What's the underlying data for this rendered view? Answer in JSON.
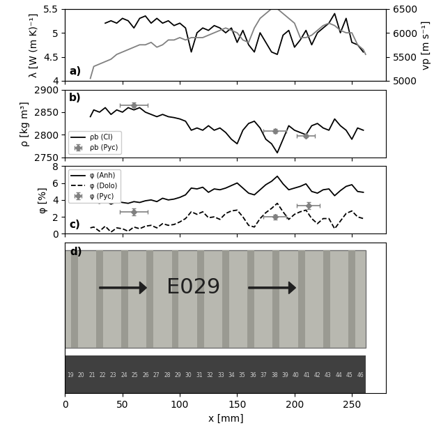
{
  "chart_data": [
    {
      "type": "line",
      "panel_label": "a)",
      "ylabel": "λ [W (m K)⁻¹]",
      "y2label": "vp [m s⁻¹]",
      "xlim": [
        0,
        280
      ],
      "xticks": [
        0,
        50,
        100,
        150,
        200,
        250
      ],
      "ylim": [
        4,
        5.5
      ],
      "yticks": [
        4,
        {
          "value": 4.5,
          "label": "4.5"
        },
        5,
        {
          "value": 5.5,
          "label": "5.5"
        }
      ],
      "y2lim": [
        5000,
        6500
      ],
      "y2ticks": [
        5000,
        5500,
        6000,
        6500
      ],
      "tick_labels": "y",
      "series": [
        {
          "name": "λ",
          "type": "line",
          "color": "#000000",
          "line_style": "solid",
          "x": [
            35,
            40,
            45,
            50,
            55,
            60,
            65,
            70,
            75,
            80,
            85,
            90,
            95,
            100,
            105,
            110,
            115,
            120,
            125,
            130,
            135,
            140,
            145,
            150,
            155,
            160,
            165,
            170,
            175,
            180,
            185,
            190,
            195,
            200,
            205,
            210,
            215,
            220,
            225,
            230,
            235,
            240,
            245,
            250,
            255,
            260
          ],
          "values": [
            5.2,
            5.25,
            5.2,
            5.3,
            5.25,
            5.1,
            5.3,
            5.35,
            5.2,
            5.3,
            5.2,
            5.25,
            5.15,
            5.2,
            5.1,
            4.6,
            5.0,
            5.1,
            5.05,
            5.15,
            5.1,
            5.0,
            5.1,
            4.8,
            5.05,
            4.75,
            4.6,
            5.0,
            4.8,
            4.6,
            4.55,
            4.95,
            5.05,
            4.7,
            4.85,
            5.05,
            4.75,
            5.0,
            5.1,
            5.2,
            5.4,
            5.0,
            5.3,
            4.8,
            4.75,
            4.6
          ]
        },
        {
          "name": "vp",
          "type": "line",
          "color": "#808080",
          "line_style": "solid",
          "axis": "y2",
          "x": [
            22,
            25,
            30,
            35,
            40,
            45,
            50,
            55,
            60,
            65,
            70,
            75,
            80,
            85,
            90,
            95,
            100,
            105,
            110,
            115,
            120,
            125,
            130,
            135,
            140,
            145,
            150,
            155,
            160,
            165,
            170,
            175,
            180,
            185,
            190,
            195,
            200,
            205,
            210,
            215,
            220,
            225,
            230,
            235,
            240,
            245,
            250,
            255,
            260,
            262
          ],
          "values": [
            5050,
            5300,
            5350,
            5400,
            5450,
            5550,
            5600,
            5650,
            5700,
            5750,
            5750,
            5800,
            5700,
            5750,
            5850,
            5850,
            5900,
            5850,
            5900,
            5900,
            5900,
            5950,
            6000,
            6050,
            6100,
            6050,
            6000,
            5850,
            5800,
            6100,
            6300,
            6400,
            6500,
            6500,
            6400,
            6300,
            6200,
            5900,
            5900,
            5950,
            6050,
            6150,
            6200,
            6150,
            6050,
            6000,
            6000,
            5750,
            5650,
            5550
          ]
        }
      ]
    },
    {
      "type": "line",
      "panel_label": "b)",
      "ylabel": "ρ [kg m³]",
      "xlim": [
        0,
        280
      ],
      "xticks": [
        0,
        50,
        100,
        150,
        200,
        250
      ],
      "ylim": [
        2750,
        2900
      ],
      "yticks": [
        2750,
        2800,
        2850,
        2900
      ],
      "tick_labels": "y",
      "legend": "lower left",
      "series": [
        {
          "name": "ρb (Cl)",
          "type": "line",
          "color": "#000000",
          "line_style": "solid",
          "x": [
            22,
            25,
            30,
            35,
            40,
            45,
            50,
            55,
            60,
            65,
            70,
            75,
            80,
            85,
            90,
            95,
            100,
            105,
            110,
            115,
            120,
            125,
            130,
            135,
            140,
            145,
            150,
            155,
            160,
            165,
            170,
            175,
            180,
            185,
            190,
            195,
            200,
            205,
            210,
            215,
            220,
            225,
            230,
            235,
            240,
            245,
            250,
            255,
            260
          ],
          "values": [
            2840,
            2855,
            2850,
            2860,
            2845,
            2855,
            2850,
            2860,
            2855,
            2860,
            2850,
            2845,
            2840,
            2845,
            2840,
            2838,
            2835,
            2830,
            2810,
            2815,
            2810,
            2820,
            2810,
            2815,
            2805,
            2790,
            2780,
            2810,
            2825,
            2830,
            2815,
            2790,
            2780,
            2760,
            2790,
            2820,
            2810,
            2805,
            2800,
            2820,
            2825,
            2815,
            2810,
            2835,
            2820,
            2810,
            2790,
            2815,
            2810
          ]
        },
        {
          "name": "ρb (Pyc)",
          "type": "scatter",
          "color": "#808080",
          "marker": "diamond",
          "x": [
            60,
            183,
            210
          ],
          "values": [
            2866,
            2808,
            2798
          ],
          "x_error": [
            12,
            10,
            8
          ],
          "y_error": [
            5,
            5,
            3
          ]
        }
      ]
    },
    {
      "type": "line",
      "panel_label": "c)",
      "ylabel": "φ [%]",
      "xlim": [
        0,
        280
      ],
      "xticks": [
        0,
        50,
        100,
        150,
        200,
        250
      ],
      "ylim": [
        0,
        8
      ],
      "yticks": [
        0,
        2,
        4,
        6,
        8
      ],
      "tick_labels": "y",
      "legend": "upper left",
      "series": [
        {
          "name": "φ (Anh)",
          "type": "line",
          "color": "#000000",
          "line_style": "solid",
          "x": [
            22,
            25,
            30,
            35,
            40,
            45,
            50,
            55,
            60,
            65,
            70,
            75,
            80,
            85,
            90,
            95,
            100,
            105,
            110,
            115,
            120,
            125,
            130,
            135,
            140,
            145,
            150,
            155,
            160,
            165,
            170,
            175,
            180,
            185,
            190,
            195,
            200,
            205,
            210,
            215,
            220,
            225,
            230,
            235,
            240,
            245,
            250,
            255,
            260
          ],
          "values": [
            3.7,
            3.8,
            3.6,
            3.9,
            3.5,
            3.8,
            3.7,
            3.6,
            3.8,
            3.7,
            3.9,
            4.0,
            3.8,
            4.2,
            4.0,
            4.1,
            4.3,
            4.6,
            5.4,
            5.3,
            5.5,
            4.9,
            5.3,
            5.2,
            5.4,
            5.7,
            6.0,
            5.4,
            4.8,
            4.6,
            5.2,
            5.8,
            6.2,
            6.8,
            5.9,
            5.2,
            5.4,
            5.6,
            5.9,
            5.0,
            4.8,
            5.2,
            5.3,
            4.5,
            5.1,
            5.6,
            5.8,
            5.0,
            4.9
          ]
        },
        {
          "name": "φ (Dolo)",
          "type": "line",
          "color": "#000000",
          "line_style": "dashed",
          "x": [
            22,
            25,
            30,
            35,
            40,
            45,
            50,
            55,
            60,
            65,
            70,
            75,
            80,
            85,
            90,
            95,
            100,
            105,
            110,
            115,
            120,
            125,
            130,
            135,
            140,
            145,
            150,
            155,
            160,
            165,
            170,
            175,
            180,
            185,
            190,
            195,
            200,
            205,
            210,
            215,
            220,
            225,
            230,
            235,
            240,
            245,
            250,
            255,
            260
          ],
          "values": [
            0.7,
            0.8,
            0.3,
            0.9,
            0.2,
            0.7,
            0.6,
            0.3,
            0.8,
            0.6,
            0.9,
            1.0,
            0.7,
            1.2,
            1.0,
            1.1,
            1.4,
            1.8,
            2.6,
            2.3,
            2.6,
            1.9,
            2.0,
            1.7,
            2.4,
            2.7,
            2.8,
            2.0,
            1.0,
            0.8,
            1.8,
            2.5,
            3.0,
            3.6,
            2.6,
            1.7,
            2.3,
            2.6,
            2.8,
            1.8,
            1.2,
            1.8,
            1.8,
            0.6,
            1.5,
            2.4,
            2.7,
            2.0,
            1.8
          ]
        },
        {
          "name": "φ (Pyc)",
          "type": "scatter",
          "color": "#808080",
          "marker": "diamond",
          "x": [
            60,
            183,
            212
          ],
          "values": [
            2.6,
            2.0,
            3.3
          ],
          "x_error": [
            12,
            10,
            10
          ],
          "y_error": [
            0.4,
            0.3,
            0.4
          ]
        }
      ]
    },
    {
      "type": "image",
      "panel_label": "d)",
      "xlabel": "x [mm]",
      "xlim": [
        0,
        280
      ],
      "xticks": [
        0,
        50,
        100,
        150,
        200,
        250
      ],
      "tick_labels": "x",
      "core_label": "E029",
      "ruler_labels": [
        19,
        20,
        21,
        22,
        23,
        24,
        25,
        26,
        27,
        28,
        29,
        30,
        31,
        32,
        33,
        34,
        35,
        36,
        37,
        38,
        39,
        40,
        41,
        42,
        43,
        44,
        45,
        46
      ]
    }
  ]
}
